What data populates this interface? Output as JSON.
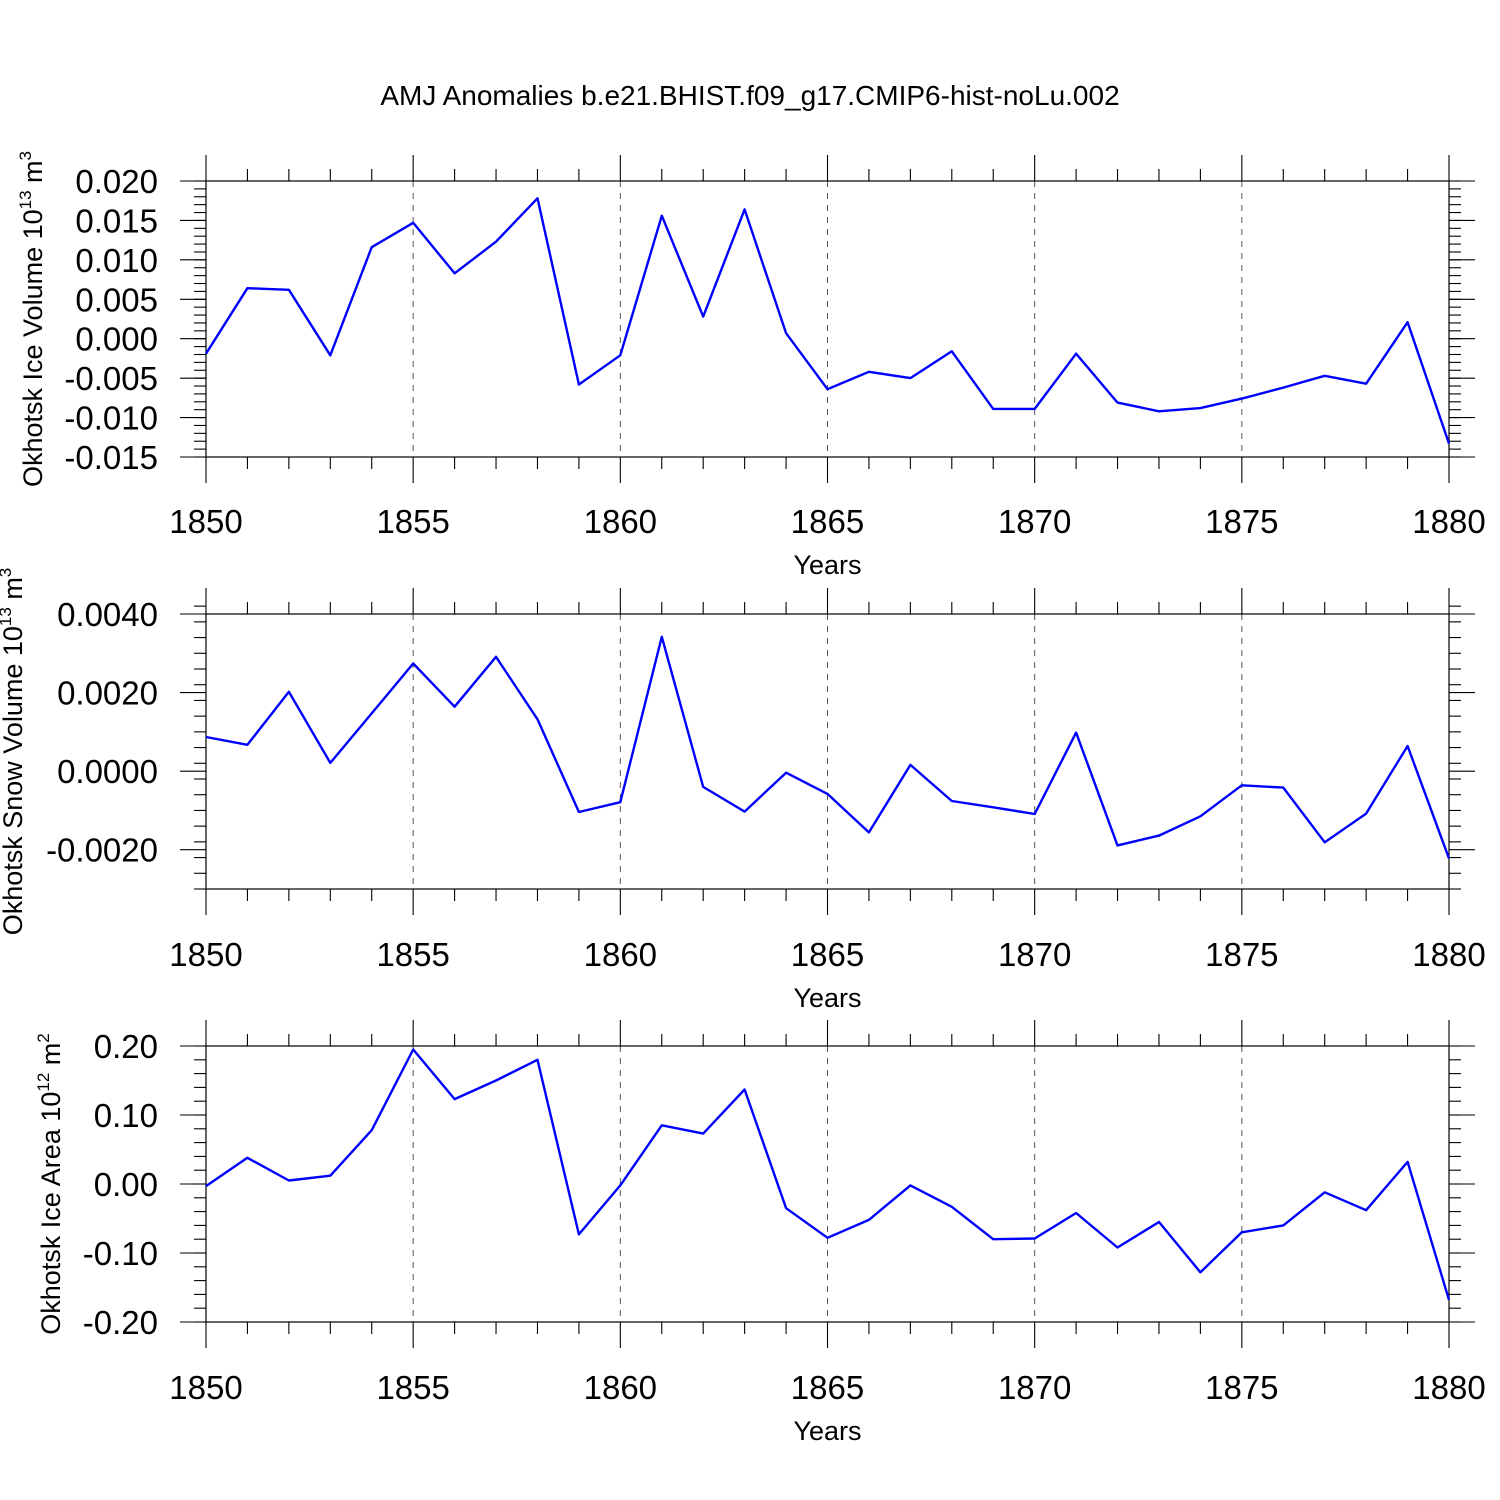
{
  "figure": {
    "title": "AMJ Anomalies b.e21.BHIST.f09_g17.CMIP6-hist-noLu.002",
    "line_color": "#0000ff",
    "grid": "dashed vertical lines at major x ticks"
  },
  "chart_data": [
    {
      "type": "line",
      "title": "",
      "xlabel": "Years",
      "ylabel": "Okhotsk Ice Volume 10^13 m^3",
      "ylabel_parts": {
        "base": "Okhotsk Ice Volume 10",
        "exp1": "13",
        "mid": " m",
        "exp2": "3"
      },
      "xlim": [
        1850,
        1880
      ],
      "ylim": [
        -0.015,
        0.02
      ],
      "x_ticks": [
        1850,
        1855,
        1860,
        1865,
        1870,
        1875,
        1880
      ],
      "x_tick_labels": [
        "1850",
        "1855",
        "1860",
        "1865",
        "1870",
        "1875",
        "1880"
      ],
      "y_ticks": [
        -0.015,
        -0.01,
        -0.005,
        0.0,
        0.005,
        0.01,
        0.015,
        0.02
      ],
      "y_tick_labels": [
        "-0.015",
        "-0.010",
        "-0.005",
        "0.000",
        "0.005",
        "0.010",
        "0.015",
        "0.020"
      ],
      "y_minor_step": 0.001,
      "x": [
        1850,
        1851,
        1852,
        1853,
        1854,
        1855,
        1856,
        1857,
        1858,
        1859,
        1860,
        1861,
        1862,
        1863,
        1864,
        1865,
        1866,
        1867,
        1868,
        1869,
        1870,
        1871,
        1872,
        1873,
        1874,
        1875,
        1876,
        1877,
        1878,
        1879,
        1880
      ],
      "series": [
        {
          "values": [
            -0.0019,
            0.0064,
            0.0062,
            -0.0021,
            0.0116,
            0.0147,
            0.0083,
            0.0123,
            0.0178,
            -0.0058,
            -0.0021,
            0.0156,
            0.0028,
            0.0164,
            0.0007,
            -0.0064,
            -0.0042,
            -0.005,
            -0.0016,
            -0.0089,
            -0.0089,
            -0.0019,
            -0.0081,
            -0.0092,
            -0.0088,
            -0.0076,
            -0.0062,
            -0.0047,
            -0.0057,
            0.0021,
            -0.0133
          ]
        }
      ]
    },
    {
      "type": "line",
      "title": "",
      "xlabel": "Years",
      "ylabel": "Okhotsk Snow Volume 10^13 m^3",
      "ylabel_parts": {
        "base": "Okhotsk Snow Volume 10",
        "exp1": "13",
        "mid": " m",
        "exp2": "3"
      },
      "xlim": [
        1850,
        1880
      ],
      "ylim": [
        -0.003,
        0.004
      ],
      "x_ticks": [
        1850,
        1855,
        1860,
        1865,
        1870,
        1875,
        1880
      ],
      "x_tick_labels": [
        "1850",
        "1855",
        "1860",
        "1865",
        "1870",
        "1875",
        "1880"
      ],
      "y_ticks": [
        -0.002,
        0.0,
        0.002,
        0.004
      ],
      "y_tick_labels": [
        "-0.0020",
        "0.0000",
        "0.0020",
        "0.0040"
      ],
      "y_minor_step": 0.0004,
      "x": [
        1850,
        1851,
        1852,
        1853,
        1854,
        1855,
        1856,
        1857,
        1858,
        1859,
        1860,
        1861,
        1862,
        1863,
        1864,
        1865,
        1866,
        1867,
        1868,
        1869,
        1870,
        1871,
        1872,
        1873,
        1874,
        1875,
        1876,
        1877,
        1878,
        1879,
        1880
      ],
      "series": [
        {
          "values": [
            0.00087,
            0.00067,
            0.00202,
            0.00021,
            0.00147,
            0.00274,
            0.00164,
            0.00291,
            0.00132,
            -0.00104,
            -0.00079,
            0.00342,
            -0.0004,
            -0.00103,
            -4e-05,
            -0.00058,
            -0.00156,
            0.00016,
            -0.00076,
            -0.00092,
            -0.00109,
            0.00098,
            -0.00189,
            -0.00164,
            -0.00115,
            -0.00036,
            -0.00042,
            -0.00181,
            -0.00108,
            0.00064,
            -0.00222
          ]
        }
      ]
    },
    {
      "type": "line",
      "title": "",
      "xlabel": "Years",
      "ylabel": "Okhotsk Ice Area 10^12 m^2",
      "ylabel_parts": {
        "base": "Okhotsk Ice Area 10",
        "exp1": "12",
        "mid": " m",
        "exp2": "2"
      },
      "xlim": [
        1850,
        1880
      ],
      "ylim": [
        -0.2,
        0.2
      ],
      "x_ticks": [
        1850,
        1855,
        1860,
        1865,
        1870,
        1875,
        1880
      ],
      "x_tick_labels": [
        "1850",
        "1855",
        "1860",
        "1865",
        "1870",
        "1875",
        "1880"
      ],
      "y_ticks": [
        -0.2,
        -0.1,
        0.0,
        0.1,
        0.2
      ],
      "y_tick_labels": [
        "-0.20",
        "-0.10",
        "0.00",
        "0.10",
        "0.20"
      ],
      "y_minor_step": 0.02,
      "x": [
        1850,
        1851,
        1852,
        1853,
        1854,
        1855,
        1856,
        1857,
        1858,
        1859,
        1860,
        1861,
        1862,
        1863,
        1864,
        1865,
        1866,
        1867,
        1868,
        1869,
        1870,
        1871,
        1872,
        1873,
        1874,
        1875,
        1876,
        1877,
        1878,
        1879,
        1880
      ],
      "series": [
        {
          "values": [
            -0.003,
            0.038,
            0.005,
            0.012,
            0.078,
            0.195,
            0.123,
            0.15,
            0.18,
            -0.073,
            -0.002,
            0.085,
            0.073,
            0.137,
            -0.035,
            -0.078,
            -0.052,
            -0.002,
            -0.033,
            -0.08,
            -0.079,
            -0.042,
            -0.092,
            -0.055,
            -0.128,
            -0.07,
            -0.06,
            -0.012,
            -0.038,
            0.032,
            -0.168
          ]
        }
      ]
    }
  ]
}
